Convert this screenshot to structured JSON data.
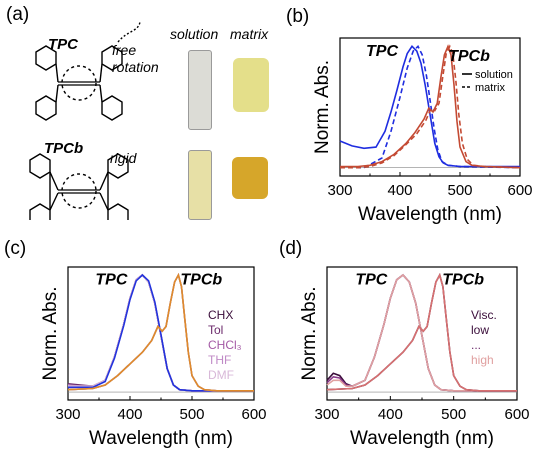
{
  "panel_labels": {
    "a": "(a)",
    "b": "(b)",
    "c": "(c)",
    "d": "(d)"
  },
  "structures": {
    "tpc": {
      "name": "TPC",
      "note": "free rotation"
    },
    "tpcb": {
      "name": "TPCb",
      "note": "rigid"
    },
    "col_headers": {
      "solution": "solution",
      "matrix": "matrix"
    },
    "vial_colors": {
      "tpc_solution": "#dcdcd6",
      "tpc_matrix": "#e4df8a",
      "tpcb_solution": "#e7e0a6",
      "tpcb_matrix": "#d6a62a"
    }
  },
  "chart_data": [
    {
      "panel": "b",
      "type": "line",
      "xlabel": "Wavelength (nm)",
      "ylabel": "Norm. Abs.",
      "xlim": [
        300,
        600
      ],
      "xticks": [
        300,
        400,
        500,
        600
      ],
      "ylim": [
        0,
        1.0
      ],
      "annotations": [
        {
          "text": "TPC",
          "x": 370,
          "y": 0.92
        },
        {
          "text": "TPCb",
          "x": 515,
          "y": 0.88
        }
      ],
      "legend": {
        "placement": "right",
        "entries": [
          {
            "label": "solution",
            "style": "solid"
          },
          {
            "label": "matrix",
            "style": "dashed"
          }
        ]
      },
      "series": [
        {
          "color": "#1f2de0",
          "style": "solid",
          "x": [
            300,
            320,
            340,
            360,
            375,
            385,
            395,
            405,
            412,
            420,
            428,
            435,
            442,
            450,
            458,
            465,
            472,
            480,
            500,
            600
          ],
          "y": [
            0.22,
            0.18,
            0.16,
            0.17,
            0.3,
            0.46,
            0.64,
            0.83,
            0.94,
            1.0,
            0.96,
            0.86,
            0.68,
            0.44,
            0.2,
            0.09,
            0.04,
            0.02,
            0.01,
            0.01
          ]
        },
        {
          "color": "#1f2de0",
          "style": "dashed",
          "x": [
            300,
            340,
            370,
            385,
            400,
            412,
            422,
            430,
            437,
            444,
            450,
            457,
            463,
            470,
            480,
            500,
            600
          ],
          "y": [
            0.0,
            0.0,
            0.08,
            0.3,
            0.58,
            0.82,
            0.96,
            1.0,
            0.93,
            0.76,
            0.56,
            0.32,
            0.15,
            0.05,
            0.02,
            0.01,
            0.0
          ]
        },
        {
          "color": "#c44a33",
          "style": "solid",
          "x": [
            300,
            330,
            350,
            370,
            390,
            410,
            425,
            440,
            448,
            455,
            462,
            468,
            474,
            480,
            485,
            490,
            495,
            500,
            510,
            520,
            540,
            600
          ],
          "y": [
            0.01,
            0.01,
            0.02,
            0.05,
            0.11,
            0.2,
            0.29,
            0.4,
            0.49,
            0.46,
            0.53,
            0.74,
            0.93,
            1.0,
            0.93,
            0.68,
            0.38,
            0.17,
            0.05,
            0.02,
            0.01,
            0.0
          ]
        },
        {
          "color": "#c44a33",
          "style": "dashed",
          "x": [
            300,
            330,
            350,
            370,
            390,
            410,
            428,
            443,
            452,
            458,
            465,
            471,
            477,
            483,
            488,
            493,
            498,
            504,
            512,
            522,
            540,
            600
          ],
          "y": [
            0.0,
            0.0,
            0.01,
            0.04,
            0.1,
            0.19,
            0.28,
            0.39,
            0.49,
            0.47,
            0.53,
            0.74,
            0.94,
            1.0,
            0.94,
            0.72,
            0.44,
            0.2,
            0.07,
            0.02,
            0.01,
            0.0
          ]
        }
      ]
    },
    {
      "panel": "c",
      "type": "line",
      "xlabel": "Wavelength (nm)",
      "ylabel": "Norm. Abs.",
      "xlim": [
        300,
        600
      ],
      "xticks": [
        300,
        400,
        500,
        600
      ],
      "ylim": [
        0,
        1.0
      ],
      "annotations": [
        {
          "text": "TPC",
          "x": 370,
          "y": 0.92
        },
        {
          "text": "TPCb",
          "x": 515,
          "y": 0.92
        }
      ],
      "legend": {
        "placement": "right",
        "entries": [
          {
            "label": "CHX",
            "color": "#3a0d3a"
          },
          {
            "label": "Tol",
            "color": "#6b2a6b"
          },
          {
            "label": "CHCl3",
            "color": "#a45aa5"
          },
          {
            "label": "THF",
            "color": "#c08ac6"
          },
          {
            "label": "DMF",
            "color": "#d8b8d8"
          }
        ]
      },
      "series": [
        {
          "name": "CHX",
          "color": "#3a0d3a",
          "x": [
            300,
            320,
            340,
            360,
            375,
            390,
            400,
            410,
            420,
            430,
            440,
            450,
            460,
            470,
            480,
            500,
            600
          ],
          "y": [
            0.06,
            0.05,
            0.05,
            0.1,
            0.3,
            0.58,
            0.8,
            0.96,
            1.0,
            0.94,
            0.76,
            0.48,
            0.2,
            0.06,
            0.02,
            0.01,
            0.01
          ]
        },
        {
          "name": "Tol",
          "color": "#6b2a6b",
          "x": [
            300,
            320,
            340,
            360,
            375,
            390,
            400,
            410,
            420,
            430,
            440,
            450,
            460,
            470,
            480,
            500,
            600
          ],
          "y": [
            0.07,
            0.06,
            0.05,
            0.1,
            0.3,
            0.58,
            0.8,
            0.96,
            1.0,
            0.94,
            0.76,
            0.48,
            0.2,
            0.06,
            0.02,
            0.01,
            0.01
          ]
        },
        {
          "name": "CHCl3",
          "color": "#a45aa5",
          "x": [
            300,
            320,
            340,
            360,
            375,
            390,
            400,
            410,
            420,
            430,
            440,
            450,
            460,
            470,
            480,
            500,
            600
          ],
          "y": [
            0.05,
            0.05,
            0.05,
            0.1,
            0.3,
            0.58,
            0.8,
            0.96,
            1.0,
            0.94,
            0.76,
            0.48,
            0.2,
            0.06,
            0.02,
            0.01,
            0.01
          ]
        },
        {
          "name": "THF",
          "color": "#c08ac6",
          "x": [
            300,
            320,
            340,
            360,
            375,
            390,
            400,
            410,
            420,
            430,
            440,
            450,
            460,
            470,
            480,
            500,
            600
          ],
          "y": [
            0.06,
            0.05,
            0.05,
            0.1,
            0.3,
            0.58,
            0.8,
            0.96,
            1.0,
            0.94,
            0.76,
            0.48,
            0.2,
            0.06,
            0.02,
            0.01,
            0.01
          ]
        },
        {
          "name": "DMF",
          "color": "#d8b8d8",
          "x": [
            300,
            320,
            340,
            360,
            375,
            390,
            400,
            410,
            420,
            430,
            440,
            450,
            460,
            470,
            480,
            500,
            600
          ],
          "y": [
            0.05,
            0.05,
            0.05,
            0.1,
            0.3,
            0.58,
            0.8,
            0.96,
            1.0,
            0.94,
            0.76,
            0.48,
            0.2,
            0.06,
            0.02,
            0.01,
            0.01
          ]
        },
        {
          "color": "#2233dd",
          "x": [
            300,
            320,
            340,
            360,
            375,
            390,
            400,
            410,
            420,
            430,
            440,
            450,
            460,
            470,
            480,
            500,
            600
          ],
          "y": [
            0.04,
            0.04,
            0.04,
            0.09,
            0.29,
            0.57,
            0.79,
            0.95,
            1.0,
            0.95,
            0.77,
            0.49,
            0.2,
            0.06,
            0.02,
            0.01,
            0.01
          ]
        },
        {
          "name": "CHX",
          "color": "#3a0d3a",
          "x": [
            300,
            340,
            360,
            380,
            400,
            420,
            435,
            445,
            452,
            458,
            465,
            472,
            478,
            483,
            488,
            494,
            500,
            510,
            520,
            540,
            600
          ],
          "y": [
            0.02,
            0.03,
            0.06,
            0.14,
            0.24,
            0.34,
            0.44,
            0.56,
            0.52,
            0.56,
            0.76,
            0.94,
            1.0,
            0.9,
            0.64,
            0.34,
            0.14,
            0.05,
            0.02,
            0.01,
            0.01
          ]
        },
        {
          "name": "DMF",
          "color": "#d8b8d8",
          "x": [
            300,
            340,
            360,
            380,
            400,
            420,
            435,
            445,
            452,
            458,
            465,
            472,
            478,
            483,
            488,
            494,
            500,
            510,
            520,
            540,
            600
          ],
          "y": [
            0.02,
            0.03,
            0.06,
            0.14,
            0.24,
            0.34,
            0.44,
            0.56,
            0.52,
            0.56,
            0.76,
            0.94,
            1.0,
            0.9,
            0.64,
            0.34,
            0.14,
            0.05,
            0.02,
            0.01,
            0.01
          ]
        },
        {
          "color": "#e08a2a",
          "x": [
            300,
            340,
            360,
            380,
            400,
            420,
            435,
            445,
            452,
            458,
            465,
            472,
            478,
            483,
            488,
            494,
            500,
            510,
            520,
            540,
            600
          ],
          "y": [
            0.02,
            0.03,
            0.06,
            0.14,
            0.24,
            0.34,
            0.44,
            0.56,
            0.52,
            0.56,
            0.76,
            0.94,
            1.0,
            0.9,
            0.64,
            0.34,
            0.14,
            0.05,
            0.02,
            0.01,
            0.01
          ]
        }
      ]
    },
    {
      "panel": "d",
      "type": "line",
      "xlabel": "Wavelength (nm)",
      "ylabel": "Norm. Abs.",
      "xlim": [
        300,
        600
      ],
      "xticks": [
        300,
        400,
        500,
        600
      ],
      "ylim": [
        0,
        1.0
      ],
      "annotations": [
        {
          "text": "TPC",
          "x": 370,
          "y": 0.92
        },
        {
          "text": "TPCb",
          "x": 515,
          "y": 0.92
        }
      ],
      "legend": {
        "placement": "right",
        "entries": [
          {
            "label": "Visc.",
            "color": "#3a0d3a"
          },
          {
            "label": "low",
            "color": "#3a0d3a"
          },
          {
            "label": "...",
            "color": "#6b2a6b"
          },
          {
            "label": "high",
            "color": "#e0a0a0"
          }
        ]
      },
      "series": [
        {
          "color": "#3a0d3a",
          "x": [
            300,
            310,
            320,
            330,
            340,
            360,
            375,
            390,
            400,
            410,
            420,
            430,
            440,
            450,
            460,
            470,
            480,
            500,
            600
          ],
          "y": [
            0.1,
            0.16,
            0.14,
            0.07,
            0.05,
            0.1,
            0.3,
            0.58,
            0.8,
            0.96,
            1.0,
            0.94,
            0.76,
            0.48,
            0.2,
            0.06,
            0.02,
            0.01,
            0.01
          ]
        },
        {
          "color": "#8a3a8a",
          "x": [
            300,
            310,
            320,
            330,
            340,
            360,
            375,
            390,
            400,
            410,
            420,
            430,
            440,
            450,
            460,
            470,
            480,
            500,
            600
          ],
          "y": [
            0.08,
            0.13,
            0.12,
            0.06,
            0.05,
            0.1,
            0.3,
            0.58,
            0.8,
            0.96,
            1.0,
            0.94,
            0.76,
            0.48,
            0.2,
            0.06,
            0.02,
            0.01,
            0.01
          ]
        },
        {
          "color": "#e0a0a0",
          "x": [
            300,
            310,
            320,
            330,
            340,
            360,
            375,
            390,
            400,
            410,
            420,
            430,
            440,
            450,
            460,
            470,
            480,
            500,
            600
          ],
          "y": [
            0.06,
            0.1,
            0.1,
            0.05,
            0.05,
            0.1,
            0.3,
            0.58,
            0.8,
            0.96,
            1.0,
            0.94,
            0.76,
            0.48,
            0.2,
            0.06,
            0.02,
            0.01,
            0.01
          ]
        },
        {
          "color": "#3a0d3a",
          "x": [
            300,
            340,
            360,
            380,
            400,
            420,
            435,
            445,
            452,
            458,
            465,
            472,
            478,
            483,
            488,
            494,
            500,
            510,
            520,
            540,
            600
          ],
          "y": [
            0.02,
            0.03,
            0.06,
            0.14,
            0.24,
            0.34,
            0.44,
            0.56,
            0.52,
            0.56,
            0.76,
            0.94,
            1.0,
            0.9,
            0.64,
            0.34,
            0.14,
            0.05,
            0.02,
            0.01,
            0.01
          ]
        },
        {
          "color": "#d87070",
          "x": [
            300,
            340,
            360,
            380,
            400,
            420,
            435,
            445,
            452,
            458,
            465,
            472,
            478,
            483,
            488,
            494,
            500,
            510,
            520,
            540,
            600
          ],
          "y": [
            0.02,
            0.03,
            0.06,
            0.14,
            0.24,
            0.34,
            0.44,
            0.56,
            0.52,
            0.56,
            0.76,
            0.94,
            1.0,
            0.9,
            0.64,
            0.34,
            0.14,
            0.05,
            0.02,
            0.01,
            0.01
          ]
        }
      ]
    }
  ]
}
